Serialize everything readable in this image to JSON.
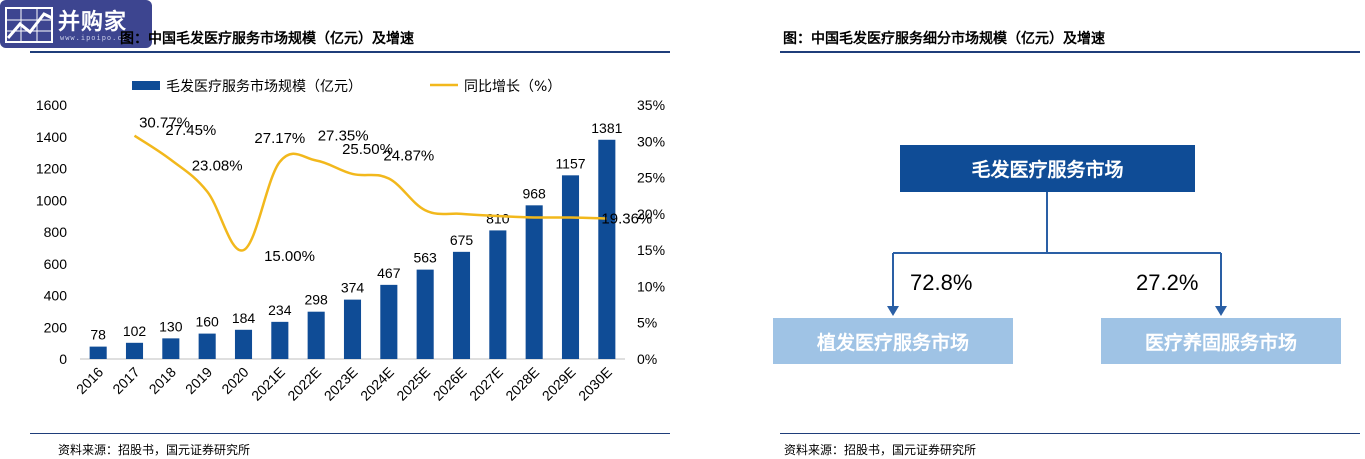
{
  "logo": {
    "text": "并购家",
    "url": "www.ipoipo.cn"
  },
  "left_panel": {
    "title": "图：中国毛发医疗服务市场规模（亿元）及增速",
    "source": "资料来源：招股书，国元证券研究所"
  },
  "right_panel": {
    "title": "图：中国毛发医疗服务细分市场规模（亿元）及增速",
    "source": "资料来源：招股书，国元证券研究所",
    "root_label": "毛发医疗服务市场",
    "children": [
      {
        "label": "植发医疗服务市场",
        "share": "72.8%"
      },
      {
        "label": "医疗养固服务市场",
        "share": "27.2%"
      }
    ]
  },
  "colors": {
    "bar": "#0f4c96",
    "line": "#f2b81c",
    "rule": "#1f3e7a",
    "child_box": "#9fc3e5"
  },
  "chart_data": {
    "type": "bar",
    "categories": [
      "2016",
      "2017",
      "2018",
      "2019",
      "2020",
      "2021E",
      "2022E",
      "2023E",
      "2024E",
      "2025E",
      "2026E",
      "2027E",
      "2028E",
      "2029E",
      "2030E"
    ],
    "series": [
      {
        "name": "毛发医疗服务市场规模（亿元）",
        "type": "bar",
        "axis": "left",
        "values": [
          78,
          102,
          130,
          160,
          184,
          234,
          298,
          374,
          467,
          563,
          675,
          810,
          968,
          1157,
          1381
        ],
        "labels": [
          "78",
          "102",
          "130",
          "160",
          "184",
          "234",
          "298",
          "374",
          "467",
          "563",
          "675",
          "810",
          "968",
          "1157",
          "1381"
        ]
      },
      {
        "name": "同比增长（%）",
        "type": "line",
        "axis": "right",
        "values": [
          null,
          30.77,
          27.45,
          23.08,
          15.0,
          27.17,
          27.35,
          25.5,
          24.87,
          20.5,
          20.0,
          19.7,
          19.5,
          19.5,
          19.36
        ],
        "labels": [
          "",
          "30.77%",
          "27.45%",
          "23.08%",
          "15.00%",
          "27.17%",
          "27.35%",
          "25.50%",
          "24.87%",
          "",
          "",
          "",
          "",
          "",
          "19.36%"
        ]
      }
    ],
    "ylim_left": [
      0,
      1600
    ],
    "yticks_left": [
      "0",
      "200",
      "400",
      "600",
      "800",
      "1000",
      "1200",
      "1400",
      "1600"
    ],
    "ylim_right": [
      0,
      35
    ],
    "yticks_right": [
      "0%",
      "5%",
      "10%",
      "15%",
      "20%",
      "25%",
      "30%",
      "35%"
    ],
    "legend_position": "top",
    "grid": false
  }
}
